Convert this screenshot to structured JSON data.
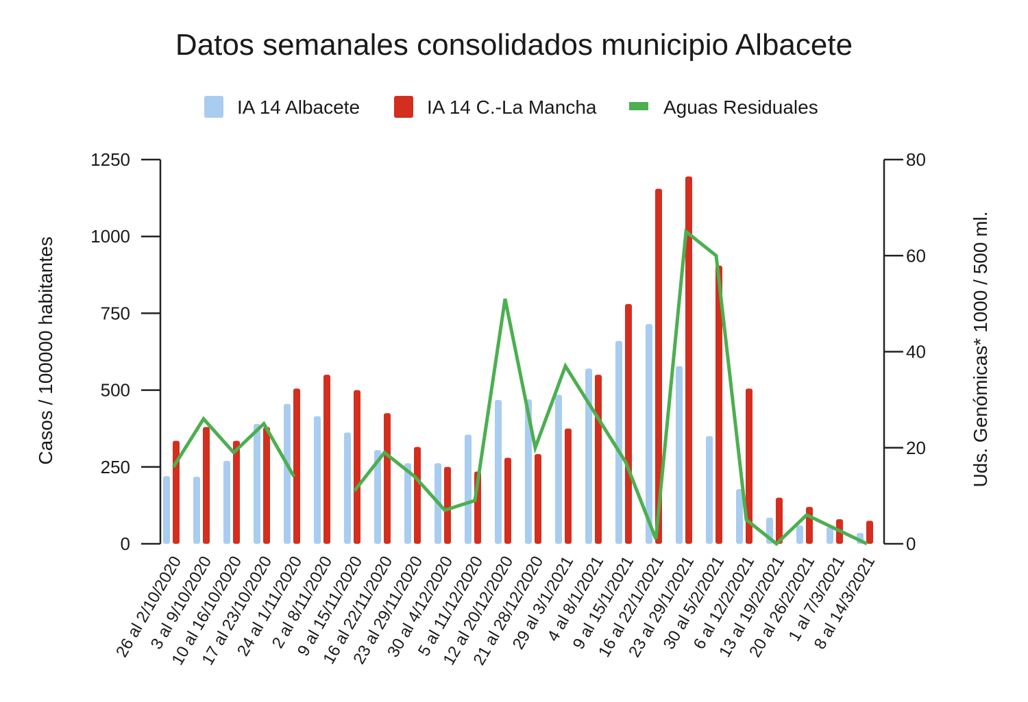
{
  "chart_data": {
    "type": "bar",
    "title": "Datos semanales consolidados municipio Albacete",
    "categories": [
      "26 al 2/10/2020",
      "3 al 9/10/2020",
      "10 al 16/10/2020",
      "17 al 23/10/2020",
      "24 al 1/11/2020",
      "2 al 8/11/2020",
      "9 al 15/11/2020",
      "16 al 22/11/2020",
      "23 al 29/11/2020",
      "30 al 4/12/2020",
      "5 al 11/12/2020",
      "12 al 20/12/2020",
      "21 al 28/12/2020",
      "29 al 3/1/2021",
      "4 al 8/1/2021",
      "9 al 15/1/2021",
      "16 al 22/1/2021",
      "23 al 29/1/2021",
      "30 al 5/2/2021",
      "6 al 12/2/2021",
      "13 al 19/2/2021",
      "20 al 26/2/2021",
      "1 al 7/3/2021",
      "8 al 14/3/2021"
    ],
    "series": [
      {
        "name": "IA 14 Albacete",
        "type": "bar",
        "axis": "left",
        "color": "#a8cdf0",
        "values": [
          220,
          218,
          270,
          390,
          455,
          415,
          362,
          305,
          262,
          262,
          355,
          468,
          470,
          485,
          570,
          660,
          715,
          578,
          350,
          178,
          85,
          60,
          55,
          35
        ]
      },
      {
        "name": "IA 14 C.-La Mancha",
        "type": "bar",
        "axis": "left",
        "color": "#d42e1f",
        "values": [
          335,
          380,
          335,
          380,
          505,
          550,
          500,
          425,
          315,
          250,
          235,
          280,
          292,
          375,
          550,
          780,
          1155,
          1195,
          905,
          505,
          150,
          120,
          80,
          75
        ]
      },
      {
        "name": "Aguas Residuales",
        "type": "line",
        "axis": "right",
        "color": "#4caf50",
        "segments": [
          {
            "start": 0,
            "values": [
              16,
              26,
              19,
              25,
              14
            ]
          },
          {
            "start": 6,
            "values": [
              11,
              19,
              14,
              7,
              9,
              51,
              20,
              37,
              27,
              17,
              1,
              65,
              60,
              5,
              0,
              6,
              3,
              0
            ]
          }
        ]
      }
    ],
    "ylabel": "Casos / 100000 habitantes",
    "ylim": [
      0,
      1250
    ],
    "yticks": [
      0,
      250,
      500,
      750,
      1000,
      1250
    ],
    "y2label": "Uds. Genómicas* 1000 / 500 ml.",
    "y2lim": [
      0,
      80
    ],
    "y2ticks": [
      0,
      20,
      40,
      60,
      80
    ],
    "grid": false,
    "legend": "top-center"
  }
}
